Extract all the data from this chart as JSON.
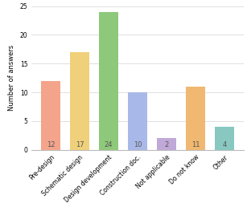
{
  "categories": [
    "Pre-design",
    "Schematic design",
    "Design development",
    "Construction doc.",
    "Not applicable",
    "Do not know",
    "Other"
  ],
  "values": [
    12,
    17,
    24,
    10,
    2,
    11,
    4
  ],
  "bar_colors": [
    "#f4a48a",
    "#f0d07a",
    "#8ec87a",
    "#a8b8e8",
    "#c0a8d8",
    "#f0b870",
    "#88c8c0"
  ],
  "ylabel": "Number of answers",
  "ylim": [
    0,
    25
  ],
  "yticks": [
    0,
    5,
    10,
    15,
    20,
    25
  ],
  "value_fontsize": 6,
  "label_fontsize": 5.5,
  "ylabel_fontsize": 6,
  "background_color": "#ffffff",
  "grid_color": "#e0e0e0",
  "bar_width": 0.65
}
